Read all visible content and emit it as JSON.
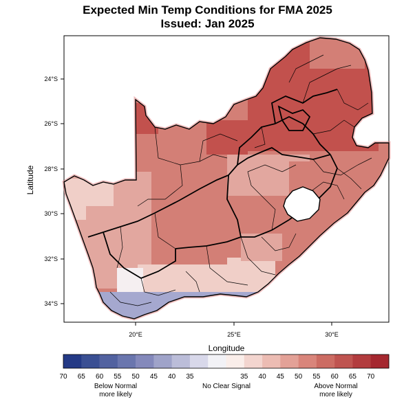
{
  "title": "Expected Min Temp Conditions for FMA 2025",
  "subtitle": "Issued: Jan 2025",
  "axes": {
    "xlabel": "Longitude",
    "ylabel": "Latitude",
    "x_ticks": [
      "20°E",
      "25°E",
      "30°E"
    ],
    "y_ticks": [
      "24°S",
      "26°S",
      "28°S",
      "30°S",
      "32°S",
      "34°S"
    ]
  },
  "legend": {
    "below_numbers": [
      "70",
      "65",
      "60",
      "55",
      "50",
      "45",
      "40",
      "35"
    ],
    "above_numbers": [
      "35",
      "40",
      "45",
      "50",
      "55",
      "60",
      "65",
      "70"
    ],
    "below_caption": [
      "Below Normal",
      "more likely"
    ],
    "neutral_caption": "No Clear Signal",
    "above_caption": [
      "Above Normal",
      "more likely"
    ],
    "colors": [
      "#243a86",
      "#3a4f93",
      "#5262a0",
      "#6a76ae",
      "#8489bb",
      "#9fa3c9",
      "#bbbdd9",
      "#d8d8ea",
      "#f2f2f6",
      "#faeeea",
      "#f3d5cf",
      "#ecbcb3",
      "#e3a197",
      "#d9857b",
      "#cc6c63",
      "#bf5450",
      "#b23c3e",
      "#a52830"
    ]
  },
  "map_colors": {
    "strong": "#c2514d",
    "moderate": "#d37f76",
    "light": "#e2a79f",
    "faint": "#f0cfc8",
    "neutral": "#f5eff1",
    "below": "#a5a8cf",
    "lesotho": "#ffffff",
    "border": "#000000",
    "coast_shadow": "#e07f7f"
  }
}
